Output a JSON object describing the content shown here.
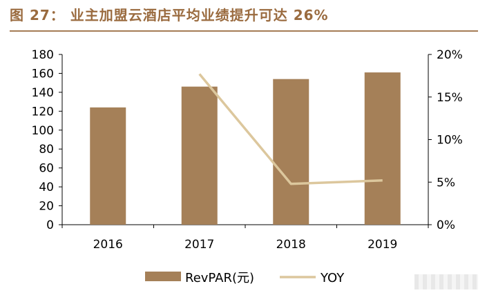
{
  "title": "图 27：  业主加盟云酒店平均业绩提升可达 26%",
  "colors": {
    "bar": "#a58058",
    "line": "#dcc79d",
    "title": "#9a6b3f",
    "axis": "#000000"
  },
  "chart_data": {
    "type": "bar",
    "categories": [
      "2016",
      "2017",
      "2018",
      "2019"
    ],
    "series": [
      {
        "name": "RevPAR(元)",
        "type": "bar",
        "axis": "left",
        "values": [
          124,
          146,
          154,
          161
        ]
      },
      {
        "name": "YOY",
        "type": "line",
        "axis": "right",
        "values": [
          null,
          0.177,
          0.048,
          0.052
        ]
      }
    ],
    "ylim": [
      0,
      180
    ],
    "yticks": [
      "0",
      "20",
      "40",
      "60",
      "80",
      "100",
      "120",
      "140",
      "160",
      "180"
    ],
    "y2lim": [
      0,
      0.2
    ],
    "y2ticks": [
      "0%",
      "5%",
      "10%",
      "15%",
      "20%"
    ],
    "legend_position": "bottom",
    "grid": false
  }
}
